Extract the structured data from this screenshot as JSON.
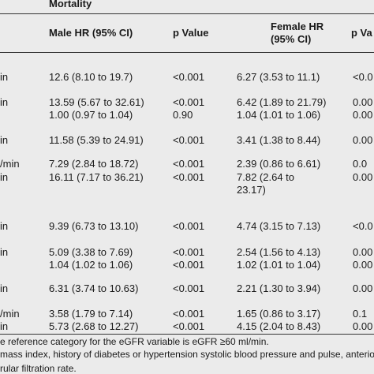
{
  "header": {
    "title": "Mortality",
    "male": "Male HR (95% CI)",
    "p_male": "p Value",
    "female_1": "Female HR",
    "female_2": "(95% CI)",
    "p_female": "p Va"
  },
  "table": {
    "rows": [
      {
        "label": "in",
        "male": "12.6 (8.10 to 19.7)",
        "p_male": "<0.001",
        "female": "6.27 (3.53 to 11.1)",
        "p_female": "<0.0"
      },
      {
        "label": "in",
        "male": "13.59 (5.67 to 32.61)",
        "p_male": "<0.001",
        "female": "6.42 (1.89 to 21.79)",
        "p_female": "0.00"
      },
      {
        "male": "1.00 (0.97 to 1.04)",
        "p_male": "0.90",
        "female": "1.04 (1.01 to 1.06)",
        "p_female": "0.00"
      },
      {
        "label": "in",
        "male": "11.58 (5.39 to 24.91)",
        "p_male": "<0.001",
        "female": "3.41 (1.38 to 8.44)",
        "p_female": "0.00"
      },
      {
        "label": "/min",
        "male": "7.29 (2.84 to 18.72)",
        "p_male": "<0.001",
        "female": "2.39 (0.86 to 6.61)",
        "p_female": "0.0"
      },
      {
        "label": "in",
        "male": "16.11 (7.17 to 36.21)",
        "p_male": "<0.001",
        "female": "7.82 (2.64 to",
        "p_female": "0.00"
      },
      {
        "female": "23.17)"
      },
      {
        "label": "in",
        "male": "9.39 (6.73 to 13.10)",
        "p_male": "<0.001",
        "female": "4.74 (3.15 to 7.13)",
        "p_female": "<0.0"
      },
      {
        "label": "in",
        "male": "5.09 (3.38 to 7.69)",
        "p_male": "<0.001",
        "female": "2.54 (1.56 to 4.13)",
        "p_female": "0.00"
      },
      {
        "male": "1.04 (1.02 to 1.06)",
        "p_male": "<0.001",
        "female": "1.02 (1.01 to 1.04)",
        "p_female": "0.00"
      },
      {
        "label": "in",
        "male": "6.31 (3.74 to 10.63)",
        "p_male": "<0.001",
        "female": "2.21 (1.30 to 3.94)",
        "p_female": "0.00"
      },
      {
        "label": "/min",
        "male": "3.58 (1.79 to 7.14)",
        "p_male": "<0.001",
        "female": "1.65 (0.86 to 3.17)",
        "p_female": "0.1"
      },
      {
        "label": "in",
        "male": "5.73 (2.68 to 12.27)",
        "p_male": "<0.001",
        "female": "4.15 (2.04 to 8.43)",
        "p_female": "0.00"
      }
    ]
  },
  "footnotes": [
    "e reference category for the eGFR variable is eGFR ≥60 ml/min.",
    "mass index, history of diabetes or hypertension systolic blood pressure and pulse, anterior m",
    "rular filtration rate."
  ]
}
